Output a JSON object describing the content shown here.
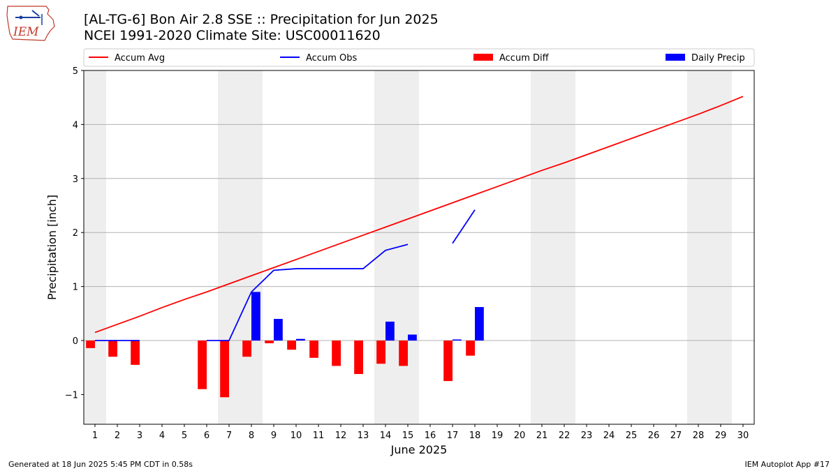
{
  "header": {
    "title_line1": "[AL-TG-6] Bon Air 2.8 SSE :: Precipitation for Jun 2025",
    "title_line2": "NCEI 1991-2020 Climate Site: USC00011620",
    "logo_text": "IEM"
  },
  "footer": {
    "generated": "Generated at 18 Jun 2025 5:45 PM CDT in 0.58s",
    "app": "IEM Autoplot App #17"
  },
  "chart_data": {
    "type": "bar",
    "xlabel": "June 2025",
    "ylabel": "Precipitation [inch]",
    "xlim": [
      0.5,
      30.5
    ],
    "ylim": [
      -1.55,
      5.0
    ],
    "yticks": [
      -1,
      0,
      1,
      2,
      3,
      4,
      5
    ],
    "ytick_labels": [
      "−1",
      "0",
      "1",
      "2",
      "3",
      "4",
      "5"
    ],
    "categories": [
      "1",
      "2",
      "3",
      "4",
      "5",
      "6",
      "7",
      "8",
      "9",
      "10",
      "11",
      "12",
      "13",
      "14",
      "15",
      "16",
      "17",
      "18",
      "19",
      "20",
      "21",
      "22",
      "23",
      "24",
      "25",
      "26",
      "27",
      "28",
      "29",
      "30"
    ],
    "grid": true,
    "legend_position": "top",
    "weekend_shading": [
      [
        0.5,
        1.5
      ],
      [
        6.5,
        8.5
      ],
      [
        13.5,
        15.5
      ],
      [
        20.5,
        22.5
      ],
      [
        27.5,
        29.5
      ]
    ],
    "series": [
      {
        "name": "Accum Avg",
        "kind": "line",
        "color": "#ff0000",
        "x": [
          1,
          2,
          3,
          4,
          5,
          6,
          7,
          8,
          9,
          10,
          11,
          12,
          13,
          14,
          15,
          16,
          17,
          18,
          19,
          20,
          21,
          22,
          23,
          24,
          25,
          26,
          27,
          28,
          29,
          30
        ],
        "values": [
          0.15,
          0.3,
          0.45,
          0.61,
          0.76,
          0.9,
          1.05,
          1.2,
          1.35,
          1.5,
          1.65,
          1.8,
          1.95,
          2.1,
          2.25,
          2.4,
          2.55,
          2.7,
          2.85,
          3.0,
          3.15,
          3.29,
          3.44,
          3.59,
          3.74,
          3.89,
          4.04,
          4.19,
          4.35,
          4.52
        ]
      },
      {
        "name": "Accum Obs",
        "kind": "line",
        "color": "#0000ff",
        "segments": [
          {
            "x": [
              1,
              2,
              3
            ],
            "values": [
              0.0,
              0.0,
              0.0
            ]
          },
          {
            "x": [
              6,
              7,
              8,
              9,
              10,
              11,
              12,
              13,
              14,
              15
            ],
            "values": [
              0.0,
              0.0,
              0.9,
              1.3,
              1.33,
              1.33,
              1.33,
              1.33,
              1.67,
              1.78
            ]
          },
          {
            "x": [
              17,
              18
            ],
            "values": [
              1.8,
              2.42
            ]
          }
        ]
      },
      {
        "name": "Accum Diff",
        "kind": "bar",
        "color": "#ff0000",
        "x": [
          1,
          2,
          3,
          6,
          7,
          8,
          9,
          10,
          11,
          12,
          13,
          14,
          15,
          17,
          18
        ],
        "values": [
          -0.14,
          -0.3,
          -0.45,
          -0.9,
          -1.05,
          -0.3,
          -0.05,
          -0.17,
          -0.32,
          -0.47,
          -0.62,
          -0.43,
          -0.47,
          -0.75,
          -0.28
        ]
      },
      {
        "name": "Daily Precip",
        "kind": "bar",
        "color": "#0000ff",
        "x": [
          1,
          2,
          3,
          6,
          7,
          8,
          9,
          10,
          11,
          12,
          13,
          14,
          15,
          17,
          18
        ],
        "values": [
          0.0,
          0.0,
          0.0,
          0.0,
          0.0,
          0.9,
          0.4,
          0.03,
          0.0,
          0.0,
          0.0,
          0.35,
          0.11,
          0.02,
          0.62
        ]
      }
    ]
  }
}
